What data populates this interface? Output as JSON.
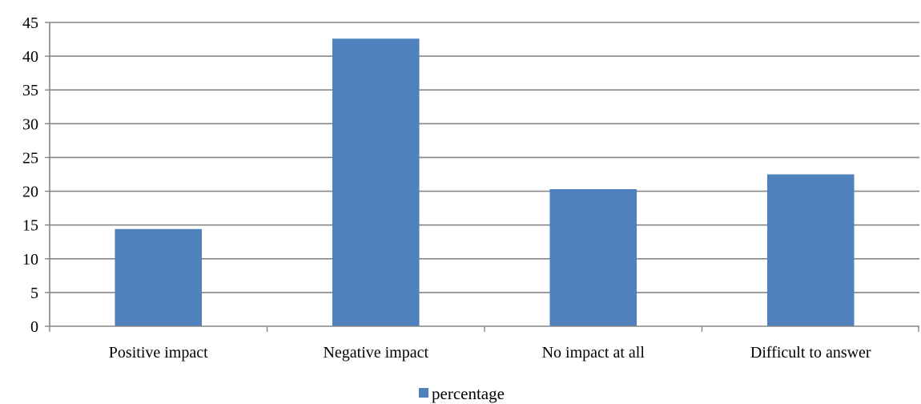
{
  "chart_data": {
    "type": "bar",
    "categories": [
      "Positive impact",
      "Negative impact",
      "No impact at all",
      "Difficult to answer"
    ],
    "series": [
      {
        "name": "percentage",
        "values": [
          14.4,
          42.6,
          20.3,
          22.5
        ]
      }
    ],
    "title": "",
    "xlabel": "",
    "ylabel": "",
    "ylim": [
      0,
      45
    ],
    "yticks": [
      "0",
      "5",
      "10",
      "15",
      "20",
      "25",
      "30",
      "35",
      "40",
      "45"
    ],
    "grid": "horizontal",
    "legend_position": "bottom",
    "colors": {
      "bar": "#4f81bd",
      "grid": "#868686",
      "axis": "#868686"
    }
  }
}
